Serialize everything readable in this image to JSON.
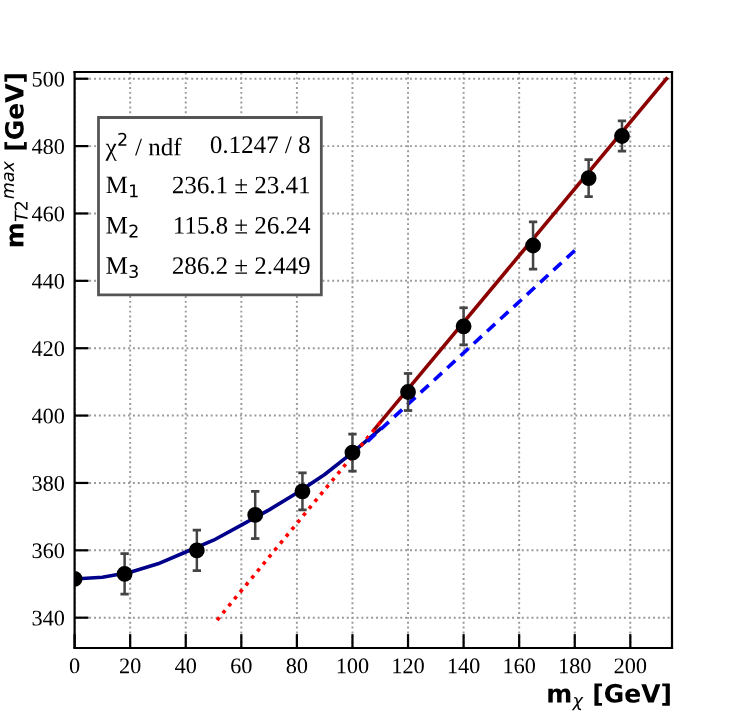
{
  "chart_data": {
    "type": "scatter",
    "xlabel": "m$_{χ}$ [GeV]",
    "ylabel": "m$_{T2}$$^{max}$ [GeV]",
    "xlim": [
      0,
      215
    ],
    "ylim": [
      331,
      502
    ],
    "xticks": [
      0,
      20,
      40,
      60,
      80,
      100,
      120,
      140,
      160,
      180,
      200
    ],
    "yticks": [
      340,
      360,
      380,
      400,
      420,
      440,
      460,
      480,
      500
    ],
    "grid": true,
    "legend": false,
    "annotations": [
      "χ$^{2}$ / ndf",
      "0.1247 / 8",
      "M$_{1}$",
      "236.1 ± 23.41",
      "M$_{2}$",
      "115.8 ± 26.24",
      "M$_{3}$",
      "286.2 ± 2.449"
    ],
    "series": [
      {
        "type": "line",
        "color": "#ff0000",
        "line_style": "dotted",
        "x": [
          50,
          110
        ],
        "values": [
          338,
          398
        ]
      },
      {
        "type": "line",
        "color": "#0000ff",
        "line_style": "dashed",
        "x": [
          105,
          180
        ],
        "values": [
          392,
          449
        ]
      },
      {
        "type": "line",
        "color": "#00008b",
        "line_style": "solid",
        "x": [
          0,
          10,
          20,
          30,
          40,
          50,
          60,
          70,
          80,
          90,
          100,
          110
        ],
        "values": [
          351.5,
          352,
          353.5,
          356,
          359.5,
          363,
          367.5,
          372,
          377,
          382.5,
          389,
          396
        ]
      },
      {
        "type": "line",
        "color": "#8b0000",
        "line_style": "solid",
        "x": [
          108,
          213
        ],
        "values": [
          396,
          500
        ]
      },
      {
        "color": "#000000",
        "marker": "circle",
        "x": [
          0,
          18,
          44,
          65,
          82,
          100,
          120,
          140,
          165,
          185,
          197
        ],
        "values": [
          351.5,
          353,
          360,
          370.5,
          377.5,
          389,
          407,
          426.5,
          450.5,
          470.5,
          483
        ],
        "errors": [
          null,
          6,
          6,
          7,
          5.5,
          5.5,
          5.5,
          5.5,
          7,
          5.5,
          4.5
        ]
      }
    ]
  }
}
